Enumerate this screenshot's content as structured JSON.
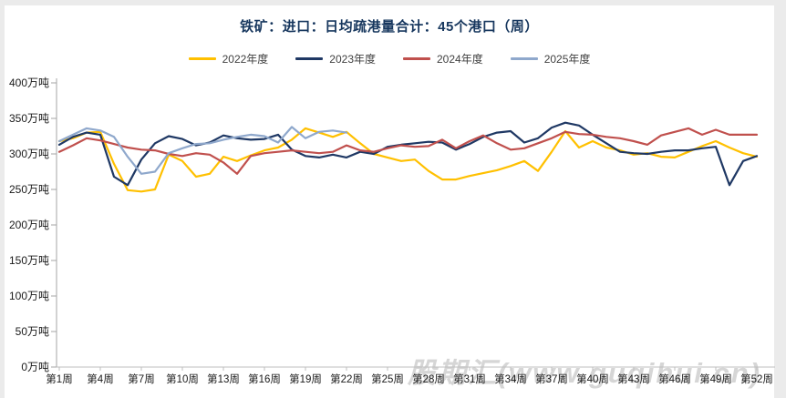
{
  "page": {
    "background": "#EBEBEB",
    "card_background": "#FFFFFF"
  },
  "watermark": {
    "text": "股期汇(www.guqihui.cn)",
    "color": "#BDBDBD"
  },
  "chart_data": {
    "type": "line",
    "title": "铁矿：进口：日均疏港量合计：45个港口（周）",
    "title_color": "#17375E",
    "unit": "万吨",
    "grid": false,
    "legend_position": "top",
    "axis_color": "#A6A6A6",
    "label_color": "#1A1A1A",
    "x_axis": {
      "total_weeks": 52,
      "tick_weeks": [
        1,
        4,
        7,
        10,
        13,
        16,
        19,
        22,
        25,
        28,
        31,
        34,
        37,
        40,
        43,
        46,
        49,
        52
      ],
      "tick_labels": [
        "第1周",
        "第4周",
        "第7周",
        "第10周",
        "第13周",
        "第16周",
        "第19周",
        "第22周",
        "第25周",
        "第28周",
        "第31周",
        "第34周",
        "第37周",
        "第40周",
        "第43周",
        "第46周",
        "第49周",
        "第52周"
      ]
    },
    "y_axis": {
      "min": 0,
      "max": 400,
      "step": 50,
      "tick_values": [
        0,
        50,
        100,
        150,
        200,
        250,
        300,
        350,
        400
      ],
      "tick_labels": [
        "0万吨",
        "50万吨",
        "100万吨",
        "150万吨",
        "200万吨",
        "250万吨",
        "300万吨",
        "350万吨",
        "400万吨"
      ]
    },
    "series": [
      {
        "name": "2022年度",
        "color": "#FFC000",
        "start_week": 1,
        "values": [
          318,
          322,
          330,
          331,
          286,
          249,
          247,
          250,
          299,
          290,
          268,
          272,
          296,
          290,
          298,
          305,
          309,
          320,
          336,
          330,
          324,
          331,
          315,
          300,
          295,
          290,
          292,
          276,
          264,
          264,
          269,
          273,
          277,
          283,
          290,
          276,
          303,
          332,
          309,
          318,
          309,
          305,
          299,
          301,
          296,
          295,
          303,
          311,
          318,
          309,
          301,
          296
        ]
      },
      {
        "name": "2023年度",
        "color": "#1F3864",
        "start_week": 1,
        "values": [
          313,
          324,
          330,
          327,
          268,
          256,
          292,
          315,
          325,
          321,
          312,
          316,
          326,
          322,
          320,
          321,
          327,
          306,
          297,
          295,
          299,
          295,
          303,
          300,
          310,
          313,
          315,
          317,
          316,
          306,
          314,
          324,
          330,
          332,
          316,
          322,
          337,
          344,
          340,
          327,
          315,
          303,
          301,
          300,
          303,
          305,
          305,
          308,
          310,
          256,
          290,
          297
        ]
      },
      {
        "name": "2024年度",
        "color": "#C0504D",
        "start_week": 1,
        "values": [
          303,
          312,
          322,
          319,
          314,
          309,
          306,
          305,
          300,
          297,
          301,
          299,
          288,
          272,
          297,
          301,
          303,
          305,
          303,
          301,
          303,
          312,
          305,
          303,
          308,
          312,
          310,
          311,
          320,
          308,
          318,
          326,
          315,
          306,
          308,
          315,
          322,
          331,
          328,
          327,
          324,
          322,
          318,
          313,
          326,
          331,
          336,
          327,
          334,
          327,
          327,
          327
        ]
      },
      {
        "name": "2025年度",
        "color": "#8FA8CC",
        "start_week": 1,
        "values": [
          318,
          327,
          336,
          333,
          324,
          296,
          272,
          275,
          301,
          308,
          314,
          315,
          320,
          324,
          327,
          325,
          316,
          338,
          322,
          331,
          333,
          330
        ]
      }
    ]
  }
}
